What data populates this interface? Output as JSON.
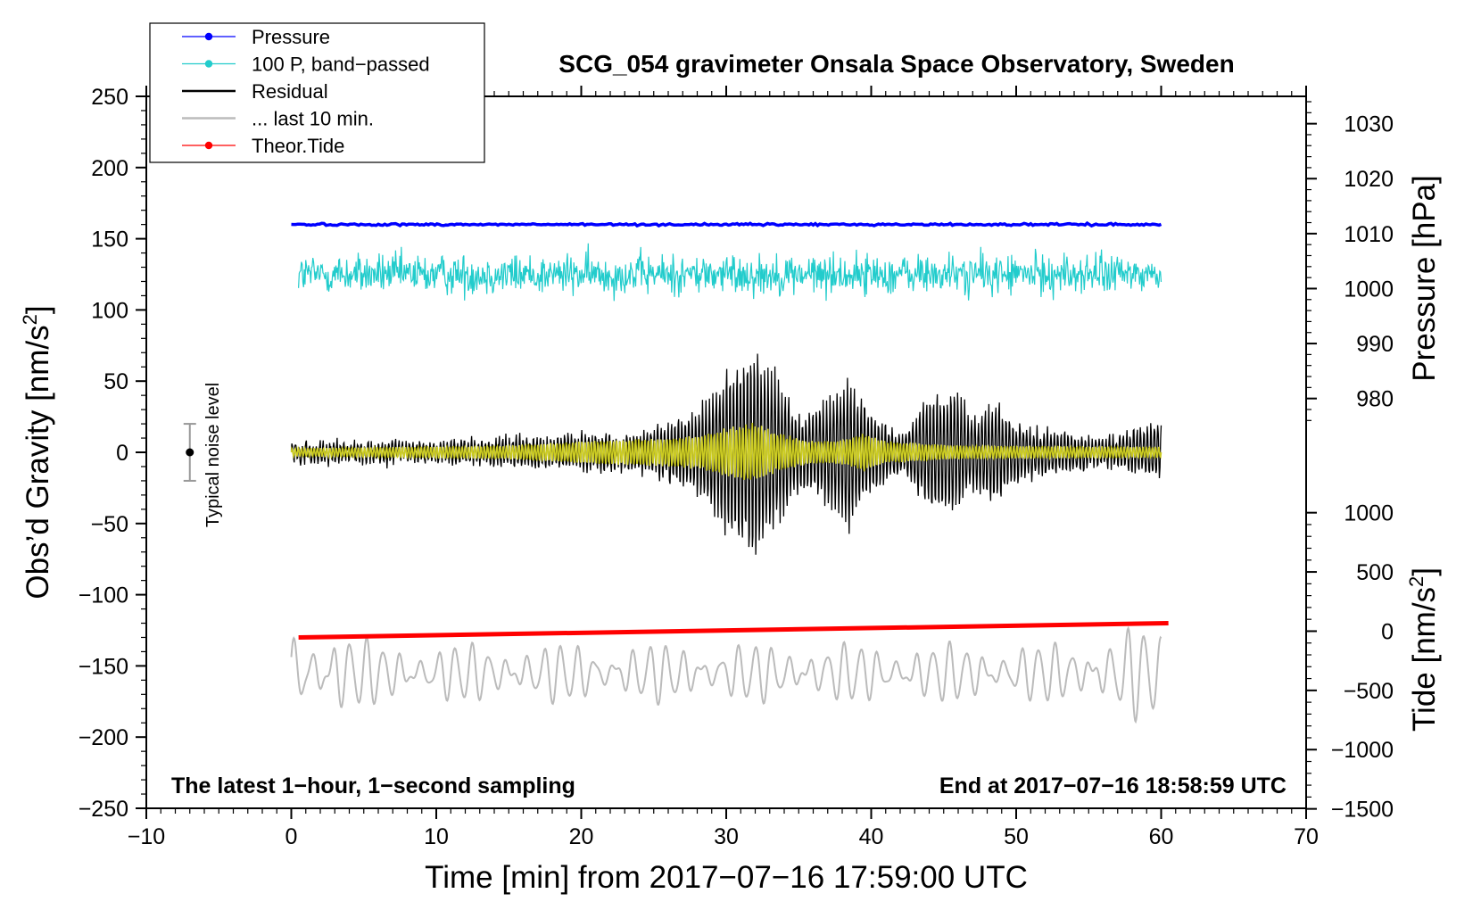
{
  "chart_data": {
    "type": "line",
    "title": "SCG_054 gravimeter Onsala Space Observatory, Sweden",
    "xlabel": "Time [min] from 2017−07−16 17:59:00 UTC",
    "ylabel_left_text": "Obs’d Gravity [nm/s",
    "ylabel_left_sup": "2",
    "ylabel_left_close": "]",
    "ylabel_right_pressure": "Pressure [hPa]",
    "ylabel_right_tide_text": "Tide [nm/s",
    "ylabel_right_tide_sup": "2",
    "ylabel_right_tide_close": "]",
    "xlim": [
      -10,
      70
    ],
    "ylim": [
      -250,
      250
    ],
    "x_ticks": [
      -10,
      0,
      10,
      20,
      30,
      40,
      50,
      60,
      70
    ],
    "x_tick_labels": [
      "−10",
      "0",
      "10",
      "20",
      "30",
      "40",
      "50",
      "60",
      "70"
    ],
    "y_ticks": [
      -250,
      -200,
      -150,
      -100,
      -50,
      0,
      50,
      100,
      150,
      200,
      250
    ],
    "y_tick_labels": [
      "−250",
      "−200",
      "−150",
      "−100",
      "−50",
      "0",
      "50",
      "100",
      "150",
      "200",
      "250"
    ],
    "pressure_axis": {
      "ticks": [
        980,
        990,
        1000,
        1010,
        1020,
        1030
      ],
      "tick_labels": [
        "980",
        "990",
        "1000",
        "1010",
        "1020",
        "1030"
      ],
      "gravity_at_1010_hPa": 153.6,
      "gravity_per_hPa": 3.86
    },
    "tide_axis": {
      "ticks": [
        -1500,
        -1000,
        -500,
        0,
        500,
        1000
      ],
      "tick_labels": [
        "−1500",
        "−1000",
        "−500",
        "0",
        "500",
        "1000"
      ],
      "gravity_at_0_tide": -125.6,
      "gravity_per_tide_unit": 0.0832
    },
    "legend": {
      "position": "top-left",
      "entries": [
        {
          "label": "Pressure",
          "color": "#0000ff",
          "marker": true
        },
        {
          "label": "100 P, band−passed",
          "color": "#22cccc",
          "marker": true
        },
        {
          "label": "Residual",
          "color": "#000000",
          "marker": false
        },
        {
          "label": "... last 10 min.",
          "color": "#bbbbbb",
          "marker": false
        },
        {
          "label": "Theor.Tide",
          "color": "#ff0000",
          "marker": true
        }
      ]
    },
    "note_left": "The latest 1−hour, 1−second sampling",
    "note_right": "End at 2017−07−16 18:58:59 UTC",
    "noise_label": "Typical noise level",
    "noise_bar": {
      "x": -7,
      "center": 0,
      "half_range": 20
    },
    "series": [
      {
        "name": "Pressure",
        "color": "#0000ff",
        "x_start": 0,
        "x_end": 60,
        "level_gravity_units": 160,
        "jitter": 0.7
      },
      {
        "name": "100 P, band-passed",
        "color": "#22cccc",
        "x_start": 0.5,
        "x_end": 60,
        "center": 125,
        "amplitude": 14,
        "min": 88,
        "max": 155
      },
      {
        "name": "Residual",
        "color": "#000000",
        "x_start": 0,
        "x_end": 60,
        "baseline_amplitude": 7,
        "envelope": [
          [
            0,
            7
          ],
          [
            10,
            8
          ],
          [
            18,
            12
          ],
          [
            24,
            14
          ],
          [
            28,
            30
          ],
          [
            30,
            60
          ],
          [
            32,
            78
          ],
          [
            33.5,
            55
          ],
          [
            35,
            28
          ],
          [
            36,
            30
          ],
          [
            38.5,
            55
          ],
          [
            40,
            30
          ],
          [
            42,
            15
          ],
          [
            44,
            42
          ],
          [
            46,
            45
          ],
          [
            47,
            25
          ],
          [
            48.5,
            38
          ],
          [
            50,
            22
          ],
          [
            53,
            15
          ],
          [
            56,
            10
          ],
          [
            60,
            22
          ]
        ],
        "min": -73,
        "max": 83
      },
      {
        "name": "Residual band-passed",
        "color": "#cccc22",
        "x_start": 0,
        "x_end": 60,
        "envelope": [
          [
            0,
            3
          ],
          [
            15,
            5
          ],
          [
            20,
            8
          ],
          [
            25,
            10
          ],
          [
            28,
            12
          ],
          [
            30,
            18
          ],
          [
            32,
            22
          ],
          [
            33.5,
            14
          ],
          [
            36,
            8
          ],
          [
            38,
            9
          ],
          [
            39.5,
            14
          ],
          [
            41,
            8
          ],
          [
            46,
            5
          ],
          [
            60,
            4
          ]
        ]
      },
      {
        "name": "... last 10 min.",
        "color": "#bbbbbb",
        "x_start": 0,
        "x_end": 60,
        "center": -155,
        "amplitude": 16,
        "min": -195,
        "max": -117
      },
      {
        "name": "Theor.Tide",
        "color": "#ff0000",
        "x": [
          0.5,
          60.5
        ],
        "y_gravity_units": [
          -130,
          -120
        ]
      }
    ]
  }
}
